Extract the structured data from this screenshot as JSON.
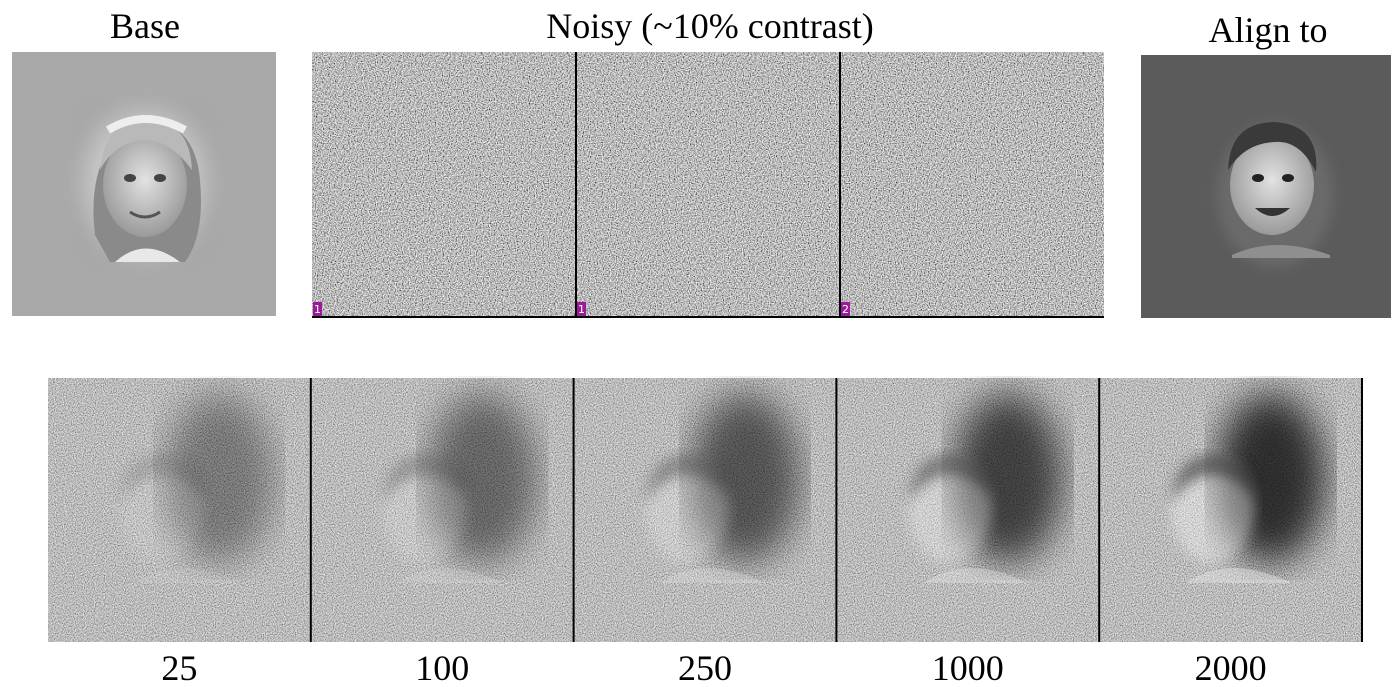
{
  "header": {
    "base": "Base",
    "noisy": "Noisy (~10% contrast)",
    "align": "Align to"
  },
  "noisy_panels": [
    {
      "label": "1"
    },
    {
      "label": "1"
    },
    {
      "label": "2"
    }
  ],
  "results": [
    {
      "label": "25"
    },
    {
      "label": "100"
    },
    {
      "label": "250"
    },
    {
      "label": "1000"
    },
    {
      "label": "2000"
    }
  ]
}
